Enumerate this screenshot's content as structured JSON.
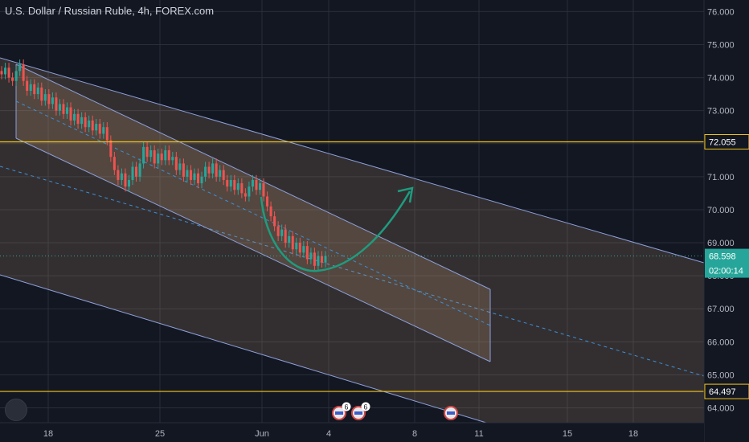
{
  "chart_data": {
    "type": "candlestick",
    "title": "U.S. Dollar / Russian Ruble, 4h, FOREX.com",
    "y_range": [
      63.55,
      76.35
    ],
    "y_ticks": [
      64.0,
      65.0,
      66.0,
      67.0,
      68.0,
      69.0,
      70.0,
      71.0,
      72.0,
      73.0,
      74.0,
      75.0,
      76.0
    ],
    "y_tick_labels": [
      "64.000",
      "65.000",
      "66.000",
      "67.000",
      "68.000",
      "69.000",
      "70.000",
      "71.000",
      "72.000",
      "73.000",
      "74.000",
      "75.000",
      "76.000"
    ],
    "x_ticks": [
      {
        "label": "18",
        "date": "2020-05-18"
      },
      {
        "label": "25",
        "date": "2020-05-25"
      },
      {
        "label": "Jun",
        "date": "2020-06-01"
      },
      {
        "label": "4",
        "date": "2020-06-04"
      },
      {
        "label": "8",
        "date": "2020-06-08"
      },
      {
        "label": "11",
        "date": "2020-06-11"
      },
      {
        "label": "15",
        "date": "2020-06-15"
      },
      {
        "label": "18",
        "date": "2020-06-18"
      }
    ],
    "horizontal_levels": [
      {
        "value": 72.055,
        "label": "72.055",
        "color": "#f5c518"
      },
      {
        "value": 64.497,
        "label": "64.497",
        "color": "#f5c518"
      }
    ],
    "last_price": {
      "value": 68.598,
      "label": "68.598",
      "countdown": "02:00:14",
      "color": "#26a69a"
    },
    "candles_close": [
      74.1,
      74.3,
      74.0,
      73.9,
      74.2,
      74.4,
      73.9,
      73.6,
      73.8,
      73.5,
      73.7,
      73.3,
      73.5,
      73.2,
      73.4,
      73.0,
      73.2,
      72.9,
      73.1,
      72.7,
      72.9,
      72.6,
      72.8,
      72.5,
      72.7,
      72.4,
      72.6,
      72.3,
      72.5,
      72.1,
      71.6,
      71.2,
      70.9,
      71.1,
      70.7,
      70.9,
      71.3,
      71.0,
      71.4,
      71.9,
      71.6,
      71.8,
      71.4,
      71.7,
      71.5,
      71.8,
      71.5,
      71.6,
      71.2,
      71.4,
      71.0,
      71.2,
      70.9,
      71.1,
      70.8,
      71.0,
      71.3,
      71.1,
      71.4,
      71.0,
      71.2,
      70.9,
      70.7,
      70.9,
      70.6,
      70.8,
      70.5,
      70.4,
      70.7,
      70.9,
      70.6,
      70.8,
      70.4,
      70.1,
      69.8,
      69.5,
      69.2,
      69.4,
      69.0,
      69.2,
      68.8,
      69.0,
      68.7,
      68.9,
      68.5,
      68.7,
      68.3,
      68.6,
      68.4,
      68.6
    ],
    "channels": [
      {
        "name": "outer-channel",
        "color": "#8c9fd9",
        "fill": "rgba(200,160,120,0.18)"
      },
      {
        "name": "inner-channel",
        "color": "#8c9fd9",
        "fill": "rgba(200,160,120,0.22)"
      }
    ],
    "annotation": {
      "type": "curved-arrow",
      "color": "#1e9c7e"
    },
    "colors": {
      "up": "#26a69a",
      "down": "#ef5350",
      "grid": "#2a2e39",
      "text": "#b2b5be"
    }
  }
}
